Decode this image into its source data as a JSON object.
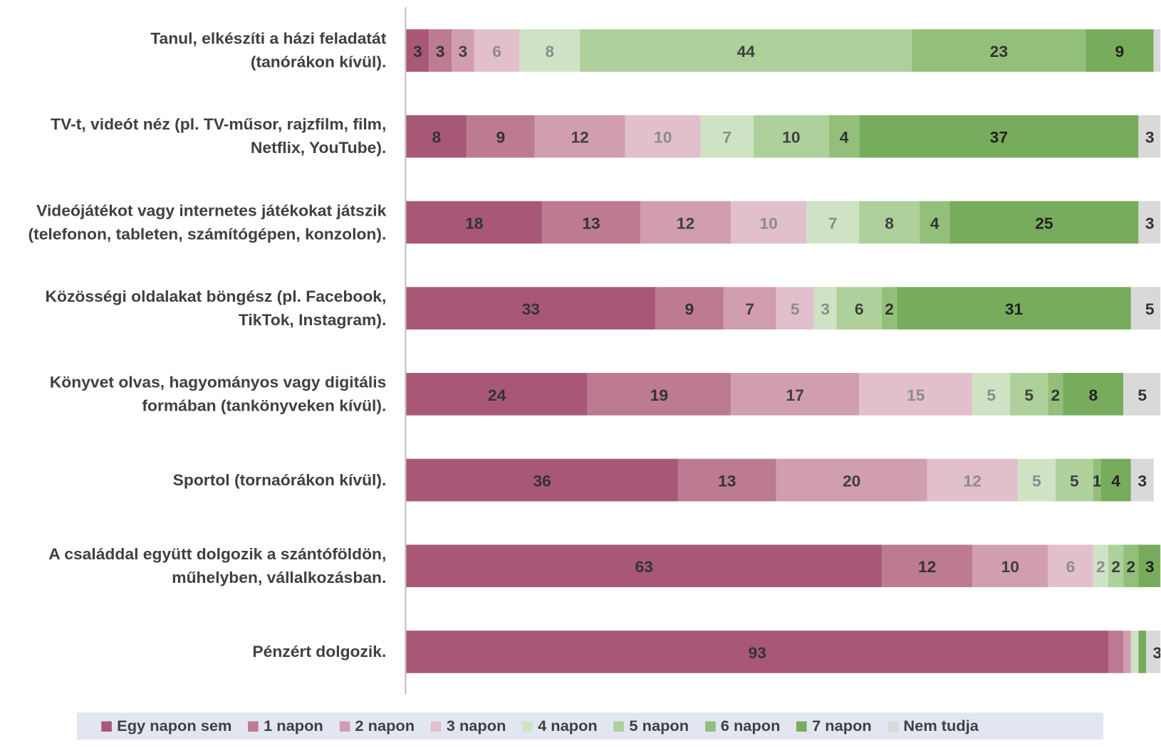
{
  "chart_data": {
    "type": "stacked-bar-horizontal",
    "categories": [
      "Tanul, elkészíti a házi feladatát\n(tanórákon kívül).",
      "TV-t, videót néz (pl. TV-műsor, rajzfilm, film,\nNetflix, YouTube).",
      "Videójátékot vagy internetes játékokat játszik\n(telefonon, tableten, számítógépen, konzolon).",
      "Közösségi oldalakat böngész (pl. Facebook,\nTikTok, Instagram).",
      "Könyvet olvas, hagyományos vagy digitális\nformában (tankönyveken kívül).",
      "Sportol (tornaórákon kívül).",
      "A családdal együtt dolgozik a szántóföldön,\nműhelyben, vállalkozásban.",
      "Pénzért dolgozik."
    ],
    "xlim": [
      0,
      100
    ],
    "series": [
      {
        "name": "Egy napon sem",
        "color": "#a85876",
        "label_color": "#333333",
        "values": [
          3,
          8,
          18,
          33,
          24,
          36,
          63,
          93
        ]
      },
      {
        "name": "1 napon",
        "color": "#bc7a93",
        "label_color": "#333333",
        "values": [
          3,
          9,
          13,
          9,
          19,
          13,
          12,
          2
        ],
        "value_labels": [
          "3",
          "9",
          "13",
          "9",
          "19",
          "13",
          "12",
          null
        ]
      },
      {
        "name": "2 napon",
        "color": "#d19db0",
        "label_color": "#404040",
        "values": [
          3,
          12,
          12,
          7,
          17,
          20,
          10,
          1
        ],
        "value_labels": [
          "3",
          "12",
          "12",
          "7",
          "17",
          "20",
          "10",
          null
        ]
      },
      {
        "name": "3 napon",
        "color": "#e2bfcc",
        "label_color": "#8c8c8c",
        "values": [
          6,
          10,
          10,
          5,
          15,
          12,
          6,
          0
        ],
        "value_labels": [
          "6",
          "10",
          "10",
          "5",
          "15",
          "12",
          "6",
          null
        ]
      },
      {
        "name": "4 napon",
        "color": "#cfe3c4",
        "label_color": "#8c8c8c",
        "values": [
          8,
          7,
          7,
          3,
          5,
          5,
          2,
          1
        ],
        "value_labels": [
          "8",
          "7",
          "7",
          "3",
          "5",
          "5",
          "2",
          null
        ]
      },
      {
        "name": "5 napon",
        "color": "#aed09b",
        "label_color": "#404040",
        "values": [
          44,
          10,
          8,
          6,
          5,
          5,
          2,
          0
        ],
        "value_labels": [
          "44",
          "10",
          "8",
          "6",
          "5",
          "5",
          "2",
          null
        ]
      },
      {
        "name": "6 napon",
        "color": "#93bf7a",
        "label_color": "#333333",
        "values": [
          23,
          4,
          4,
          2,
          2,
          1,
          2,
          0
        ],
        "value_labels": [
          "23",
          "4",
          "4",
          "2",
          "2",
          "1",
          "2",
          null
        ]
      },
      {
        "name": "7 napon",
        "color": "#77ac5c",
        "label_color": "#222222",
        "values": [
          9,
          37,
          25,
          31,
          8,
          4,
          3,
          1
        ],
        "value_labels": [
          "9",
          "37",
          "25",
          "31",
          "8",
          "4",
          "3",
          null
        ]
      },
      {
        "name": "Nem tudja",
        "color": "#d9d9d9",
        "label_color": "#333333",
        "values": [
          3,
          3,
          3,
          5,
          5,
          3,
          2,
          3
        ]
      }
    ]
  }
}
